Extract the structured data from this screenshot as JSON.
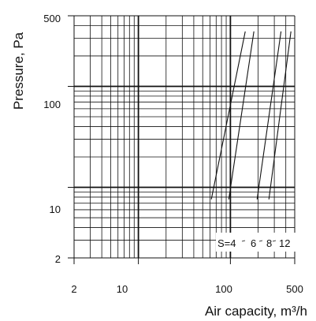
{
  "chart_data": {
    "type": "line",
    "xlabel": "Air capacity, m³/h",
    "ylabel": "Pressure, Pa",
    "xscale": "log",
    "yscale": "log",
    "xlim": [
      2,
      500
    ],
    "ylim": [
      2,
      500
    ],
    "x_ticks": [
      "2",
      "10",
      "100",
      "500"
    ],
    "y_ticks": [
      "2",
      "10",
      "100",
      "500"
    ],
    "grid": true,
    "series_label_text": "S=4",
    "series": [
      {
        "name": "4",
        "label": "S=4",
        "points": [
          [
            62,
            7.6
          ],
          [
            145,
            350
          ]
        ]
      },
      {
        "name": "6",
        "label": "6",
        "points": [
          [
            96,
            7.6
          ],
          [
            180,
            350
          ]
        ]
      },
      {
        "name": "8",
        "label": "8",
        "points": [
          [
            195,
            7.6
          ],
          [
            355,
            350
          ]
        ]
      },
      {
        "name": "12",
        "label": "12",
        "points": [
          [
            262,
            7.6
          ],
          [
            455,
            350
          ]
        ]
      }
    ],
    "series_labels": [
      "S=4",
      "6",
      "8",
      "12"
    ]
  }
}
